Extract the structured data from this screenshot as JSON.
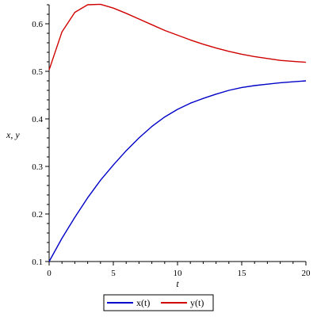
{
  "chart_data": {
    "type": "line",
    "title": "",
    "xlabel": "t",
    "ylabel": "x, y",
    "xlim": [
      0,
      20
    ],
    "ylim": [
      0.1,
      0.64
    ],
    "x_ticks": [
      0,
      5,
      10,
      15,
      20
    ],
    "x_tick_labels": [
      "0",
      "5",
      "10",
      "15",
      "20"
    ],
    "y_ticks": [
      0.1,
      0.2,
      0.3,
      0.4,
      0.5,
      0.6
    ],
    "y_tick_labels": [
      "0.1",
      "0.2",
      "0.3",
      "0.4",
      "0.5",
      "0.6"
    ],
    "grid": false,
    "legend_position": "bottom",
    "x": [
      0,
      1,
      2,
      3,
      4,
      5,
      6,
      7,
      8,
      9,
      10,
      11,
      12,
      13,
      14,
      15,
      16,
      17,
      18,
      19,
      20
    ],
    "series": [
      {
        "name": "x(t)",
        "color": "#0000c8",
        "values": [
          0.1,
          0.149,
          0.193,
          0.234,
          0.271,
          0.303,
          0.333,
          0.36,
          0.384,
          0.404,
          0.42,
          0.433,
          0.443,
          0.452,
          0.46,
          0.466,
          0.47,
          0.473,
          0.476,
          0.478,
          0.48
        ]
      },
      {
        "name": "y(t)",
        "color": "#d00000",
        "values": [
          0.503,
          0.583,
          0.624,
          0.64,
          0.641,
          0.633,
          0.622,
          0.61,
          0.598,
          0.586,
          0.576,
          0.566,
          0.557,
          0.549,
          0.542,
          0.536,
          0.531,
          0.527,
          0.523,
          0.521,
          0.519
        ]
      }
    ]
  }
}
